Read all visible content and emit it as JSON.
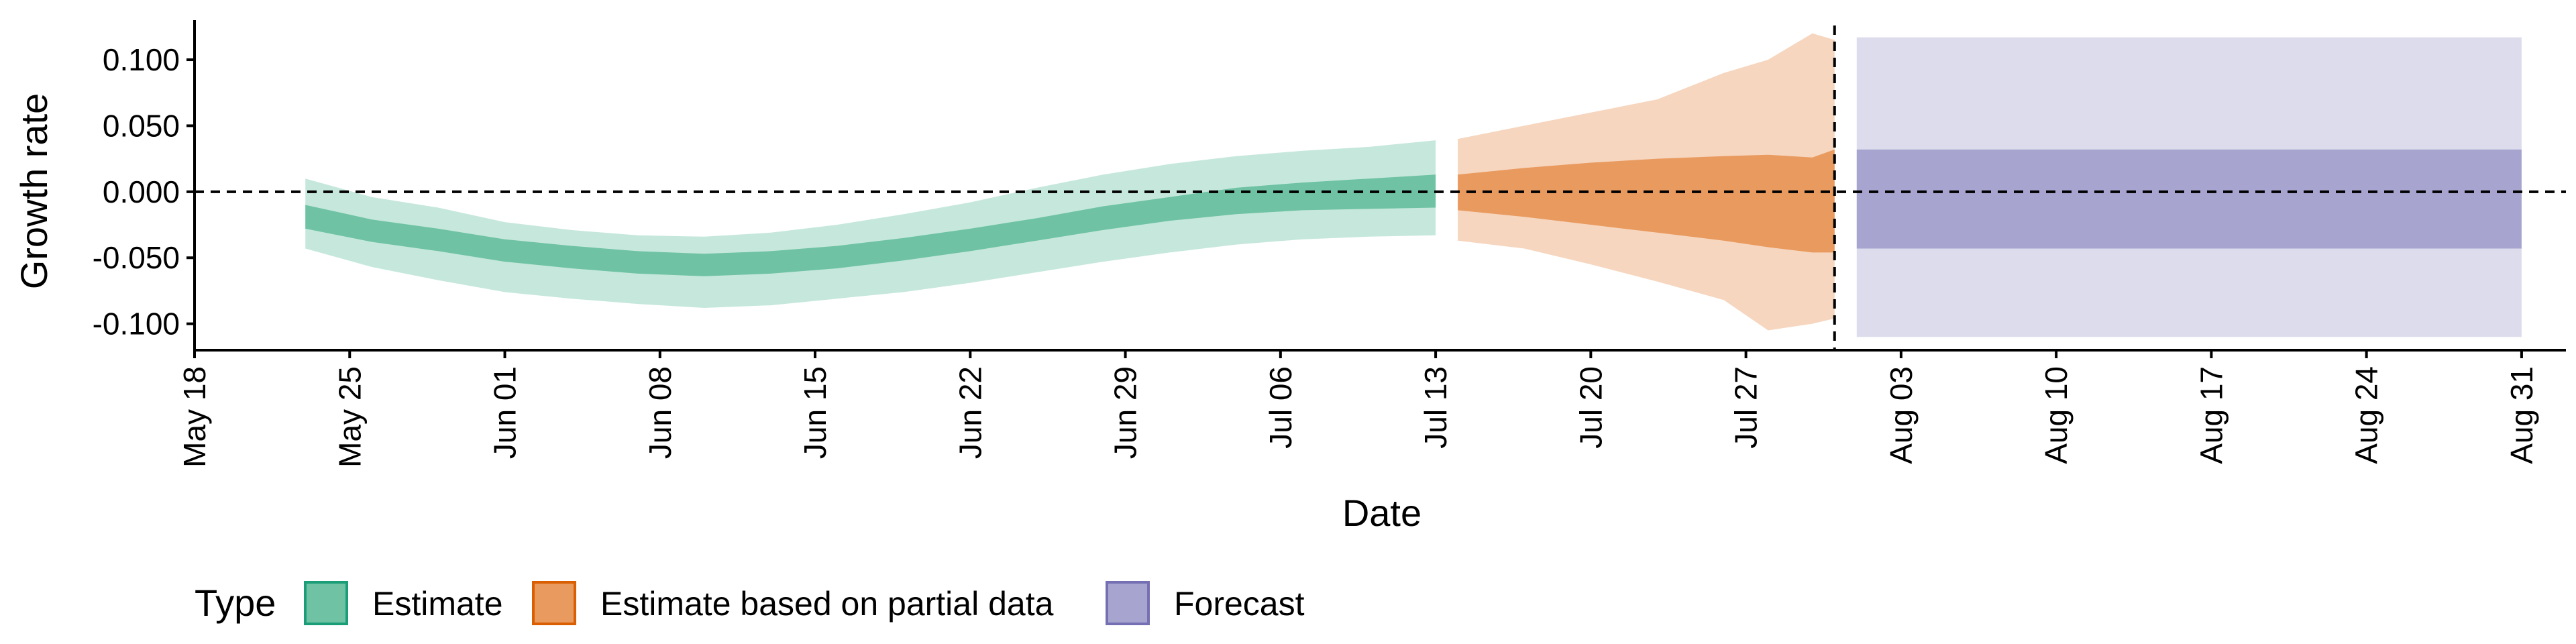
{
  "chart_data": {
    "type": "area",
    "xlabel": "Date",
    "ylabel": "Growth rate",
    "x_type": "date",
    "xlim": [
      "2020-05-18",
      "2020-09-02"
    ],
    "ylim": [
      -0.12,
      0.13
    ],
    "x_ticks": [
      "2020-05-18",
      "2020-05-25",
      "2020-06-01",
      "2020-06-08",
      "2020-06-15",
      "2020-06-22",
      "2020-06-29",
      "2020-07-06",
      "2020-07-13",
      "2020-07-20",
      "2020-07-27",
      "2020-08-03",
      "2020-08-10",
      "2020-08-17",
      "2020-08-24",
      "2020-08-31"
    ],
    "x_tick_labels": [
      "May 18",
      "May 25",
      "Jun 01",
      "Jun 08",
      "Jun 15",
      "Jun 22",
      "Jun 29",
      "Jul 06",
      "Jul 13",
      "Jul 20",
      "Jul 27",
      "Aug 03",
      "Aug 10",
      "Aug 17",
      "Aug 24",
      "Aug 31"
    ],
    "y_ticks": [
      0.1,
      0.05,
      0.0,
      -0.05,
      -0.1
    ],
    "y_tick_labels": [
      "0.100",
      "0.050",
      "0.000",
      "-0.050",
      "-0.100"
    ],
    "reference_lines": {
      "horizontal_y": 0.0,
      "vertical_x": "2020-07-31",
      "style": "dashed"
    },
    "legend": {
      "title": "Type",
      "position": "bottom",
      "entries": [
        "Estimate",
        "Estimate based on partial data",
        "Forecast"
      ]
    },
    "grid": false,
    "colors": {
      "Estimate": {
        "inner": "#6fc3a4",
        "outer": "#c6e8dc",
        "border": "#1b9e77"
      },
      "Estimate based on partial data": {
        "inner": "#e99a5f",
        "outer": "#f6d6bf",
        "border": "#d95f02"
      },
      "Forecast": {
        "inner": "#a7a5d0",
        "outer": "#dddced",
        "border": "#7570b3"
      }
    },
    "series": [
      {
        "name": "Estimate",
        "x": [
          "2020-05-23",
          "2020-05-26",
          "2020-05-29",
          "2020-06-01",
          "2020-06-04",
          "2020-06-07",
          "2020-06-10",
          "2020-06-13",
          "2020-06-16",
          "2020-06-19",
          "2020-06-22",
          "2020-06-25",
          "2020-06-28",
          "2020-07-01",
          "2020-07-04",
          "2020-07-07",
          "2020-07-10",
          "2020-07-13"
        ],
        "lower_outer": [
          -0.043,
          -0.057,
          -0.067,
          -0.076,
          -0.081,
          -0.085,
          -0.088,
          -0.086,
          -0.081,
          -0.076,
          -0.069,
          -0.061,
          -0.053,
          -0.046,
          -0.04,
          -0.036,
          -0.034,
          -0.033
        ],
        "lower_inner": [
          -0.028,
          -0.038,
          -0.045,
          -0.053,
          -0.058,
          -0.062,
          -0.064,
          -0.062,
          -0.058,
          -0.052,
          -0.045,
          -0.037,
          -0.029,
          -0.022,
          -0.017,
          -0.014,
          -0.013,
          -0.012
        ],
        "upper_inner": [
          -0.01,
          -0.021,
          -0.028,
          -0.036,
          -0.041,
          -0.045,
          -0.047,
          -0.045,
          -0.041,
          -0.035,
          -0.028,
          -0.02,
          -0.011,
          -0.004,
          0.003,
          0.007,
          0.01,
          0.013
        ],
        "upper_outer": [
          0.01,
          -0.004,
          -0.012,
          -0.023,
          -0.029,
          -0.033,
          -0.034,
          -0.031,
          -0.025,
          -0.017,
          -0.008,
          0.003,
          0.013,
          0.021,
          0.027,
          0.031,
          0.034,
          0.039
        ]
      },
      {
        "name": "Estimate based on partial data",
        "x": [
          "2020-07-14",
          "2020-07-17",
          "2020-07-20",
          "2020-07-23",
          "2020-07-26",
          "2020-07-28",
          "2020-07-30",
          "2020-07-31"
        ],
        "lower_outer": [
          -0.037,
          -0.043,
          -0.055,
          -0.068,
          -0.082,
          -0.105,
          -0.1,
          -0.096
        ],
        "lower_inner": [
          -0.014,
          -0.019,
          -0.025,
          -0.031,
          -0.037,
          -0.042,
          -0.046,
          -0.046
        ],
        "upper_inner": [
          0.013,
          0.018,
          0.022,
          0.025,
          0.027,
          0.028,
          0.026,
          0.032
        ],
        "upper_outer": [
          0.04,
          0.05,
          0.06,
          0.07,
          0.09,
          0.1,
          0.12,
          0.115
        ]
      },
      {
        "name": "Forecast",
        "x": [
          "2020-08-01",
          "2020-08-31"
        ],
        "lower_outer": [
          -0.11,
          -0.11
        ],
        "lower_inner": [
          -0.043,
          -0.043
        ],
        "upper_inner": [
          0.032,
          0.032
        ],
        "upper_outer": [
          0.117,
          0.117
        ]
      }
    ]
  }
}
